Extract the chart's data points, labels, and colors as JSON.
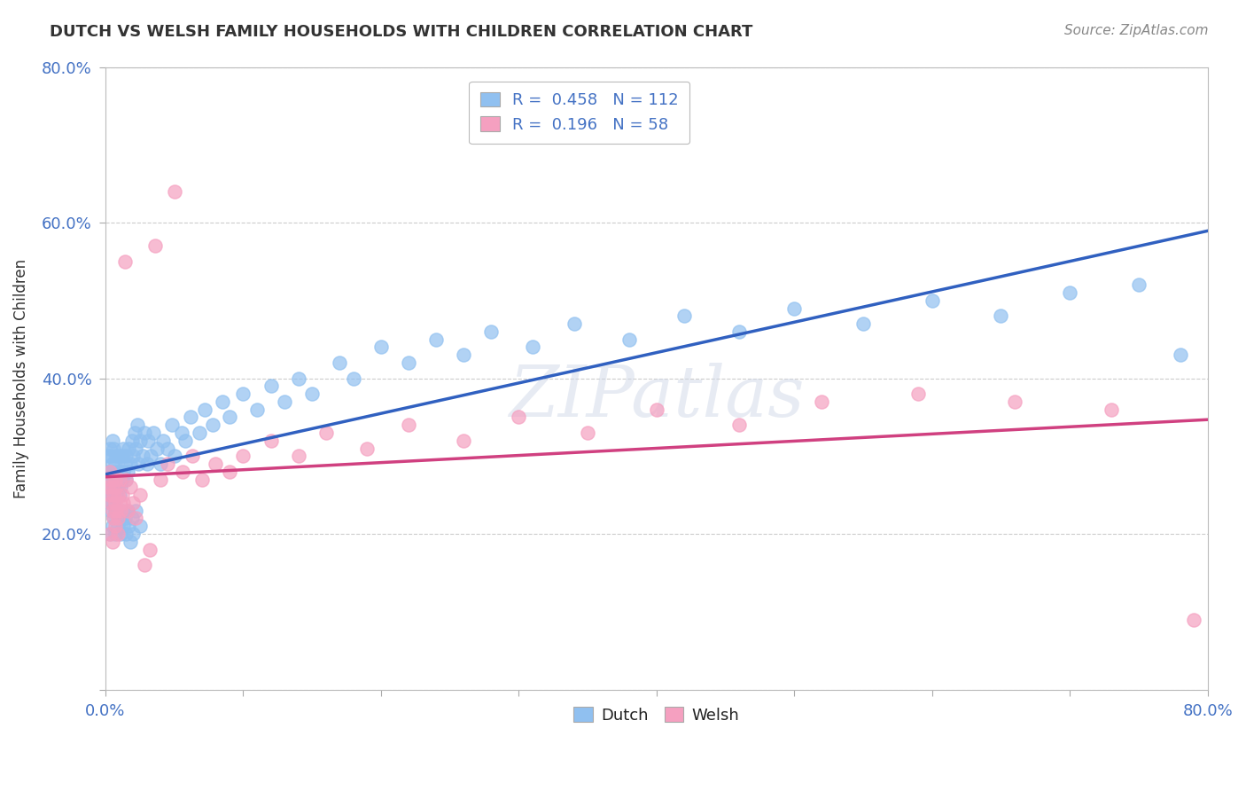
{
  "title": "DUTCH VS WELSH FAMILY HOUSEHOLDS WITH CHILDREN CORRELATION CHART",
  "source": "Source: ZipAtlas.com",
  "ylabel": "Family Households with Children",
  "dutch_color": "#90c0f0",
  "welsh_color": "#f5a0c0",
  "dutch_line_color": "#3060c0",
  "welsh_line_color": "#d04080",
  "dutch_R": 0.458,
  "dutch_N": 112,
  "welsh_R": 0.196,
  "welsh_N": 58,
  "background_color": "#ffffff",
  "grid_color": "#cccccc",
  "xlim": [
    0.0,
    0.8
  ],
  "ylim": [
    0.0,
    0.8
  ],
  "dutch_x": [
    0.001,
    0.002,
    0.002,
    0.003,
    0.003,
    0.003,
    0.004,
    0.004,
    0.004,
    0.005,
    0.005,
    0.005,
    0.005,
    0.006,
    0.006,
    0.006,
    0.006,
    0.007,
    0.007,
    0.007,
    0.008,
    0.008,
    0.008,
    0.009,
    0.009,
    0.01,
    0.01,
    0.01,
    0.011,
    0.011,
    0.012,
    0.012,
    0.013,
    0.013,
    0.014,
    0.015,
    0.015,
    0.016,
    0.017,
    0.018,
    0.019,
    0.02,
    0.021,
    0.022,
    0.023,
    0.024,
    0.025,
    0.027,
    0.028,
    0.03,
    0.031,
    0.033,
    0.035,
    0.037,
    0.04,
    0.042,
    0.045,
    0.048,
    0.05,
    0.055,
    0.058,
    0.062,
    0.068,
    0.072,
    0.078,
    0.085,
    0.09,
    0.1,
    0.11,
    0.12,
    0.13,
    0.14,
    0.15,
    0.17,
    0.18,
    0.2,
    0.22,
    0.24,
    0.26,
    0.28,
    0.31,
    0.34,
    0.38,
    0.42,
    0.46,
    0.5,
    0.55,
    0.6,
    0.65,
    0.7,
    0.75,
    0.78,
    0.003,
    0.004,
    0.005,
    0.006,
    0.007,
    0.008,
    0.009,
    0.01,
    0.011,
    0.012,
    0.013,
    0.014,
    0.015,
    0.016,
    0.017,
    0.018,
    0.019,
    0.02,
    0.022,
    0.025
  ],
  "dutch_y": [
    0.26,
    0.28,
    0.3,
    0.25,
    0.28,
    0.31,
    0.24,
    0.27,
    0.3,
    0.25,
    0.27,
    0.29,
    0.32,
    0.24,
    0.26,
    0.28,
    0.31,
    0.23,
    0.26,
    0.29,
    0.25,
    0.27,
    0.3,
    0.26,
    0.28,
    0.25,
    0.27,
    0.3,
    0.26,
    0.28,
    0.27,
    0.3,
    0.28,
    0.31,
    0.29,
    0.27,
    0.3,
    0.28,
    0.31,
    0.29,
    0.32,
    0.3,
    0.33,
    0.31,
    0.34,
    0.29,
    0.32,
    0.3,
    0.33,
    0.29,
    0.32,
    0.3,
    0.33,
    0.31,
    0.29,
    0.32,
    0.31,
    0.34,
    0.3,
    0.33,
    0.32,
    0.35,
    0.33,
    0.36,
    0.34,
    0.37,
    0.35,
    0.38,
    0.36,
    0.39,
    0.37,
    0.4,
    0.38,
    0.42,
    0.4,
    0.44,
    0.42,
    0.45,
    0.43,
    0.46,
    0.44,
    0.47,
    0.45,
    0.48,
    0.46,
    0.49,
    0.47,
    0.5,
    0.48,
    0.51,
    0.52,
    0.43,
    0.2,
    0.23,
    0.21,
    0.22,
    0.2,
    0.23,
    0.21,
    0.22,
    0.2,
    0.23,
    0.21,
    0.22,
    0.2,
    0.23,
    0.21,
    0.19,
    0.22,
    0.2,
    0.23,
    0.21
  ],
  "welsh_x": [
    0.002,
    0.003,
    0.003,
    0.004,
    0.004,
    0.005,
    0.005,
    0.006,
    0.006,
    0.007,
    0.007,
    0.008,
    0.008,
    0.009,
    0.009,
    0.01,
    0.01,
    0.011,
    0.012,
    0.013,
    0.014,
    0.015,
    0.016,
    0.018,
    0.02,
    0.022,
    0.025,
    0.028,
    0.032,
    0.036,
    0.04,
    0.045,
    0.05,
    0.056,
    0.063,
    0.07,
    0.08,
    0.09,
    0.1,
    0.12,
    0.14,
    0.16,
    0.19,
    0.22,
    0.26,
    0.3,
    0.35,
    0.4,
    0.46,
    0.52,
    0.59,
    0.66,
    0.73,
    0.79,
    0.003,
    0.005,
    0.007,
    0.009
  ],
  "welsh_y": [
    0.26,
    0.25,
    0.28,
    0.24,
    0.27,
    0.23,
    0.26,
    0.22,
    0.25,
    0.24,
    0.27,
    0.23,
    0.26,
    0.22,
    0.25,
    0.24,
    0.27,
    0.23,
    0.25,
    0.24,
    0.55,
    0.27,
    0.23,
    0.26,
    0.24,
    0.22,
    0.25,
    0.16,
    0.18,
    0.57,
    0.27,
    0.29,
    0.64,
    0.28,
    0.3,
    0.27,
    0.29,
    0.28,
    0.3,
    0.32,
    0.3,
    0.33,
    0.31,
    0.34,
    0.32,
    0.35,
    0.33,
    0.36,
    0.34,
    0.37,
    0.38,
    0.37,
    0.36,
    0.09,
    0.2,
    0.19,
    0.21,
    0.2
  ]
}
